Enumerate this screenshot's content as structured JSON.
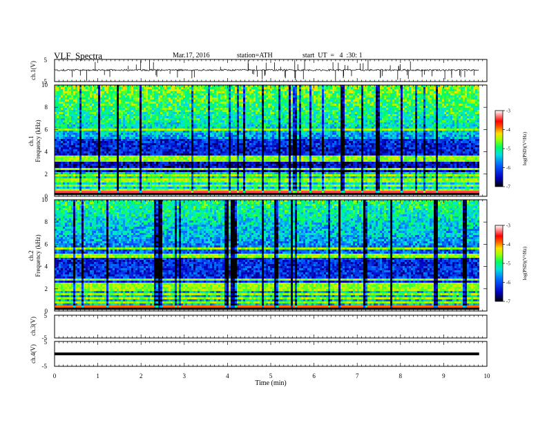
{
  "header": {
    "title": "VLF  Spectra",
    "date": "Mar.17, 2016",
    "station": "station=ATH",
    "start": "start  UT  =   4  :30: 1"
  },
  "chart_data": [
    {
      "type": "line",
      "panel": "ch1-waveform",
      "ylabel": "ch.1(V)",
      "yticks": [
        "5",
        "-5"
      ],
      "ylim": [
        -5,
        5
      ],
      "xlim": [
        0,
        10
      ],
      "data_extent_min": [
        0,
        9.82
      ],
      "approx_level": 0.2,
      "approx_amplitude": 0.4
    },
    {
      "type": "heatmap",
      "panel": "ch1-spectrogram",
      "ylabel": "ch.1\nFrequency  (kHz)",
      "ylabel_top": "ch.1",
      "ylabel_bottom": "Frequency  (kHz)",
      "yticks": [
        "10",
        "8",
        "6",
        "4",
        "2",
        "0"
      ],
      "ylim": [
        0,
        10
      ],
      "xlim": [
        0,
        10
      ],
      "colorbar": {
        "label": "log(PSD)(V²/Hz)",
        "ticks": [
          "-3",
          "-4",
          "-5",
          "-6",
          "-7"
        ],
        "range": [
          -7,
          -3
        ]
      }
    },
    {
      "type": "heatmap",
      "panel": "ch2-spectrogram",
      "ylabel_top": "ch.2",
      "ylabel_bottom": "Frequency  (kHz)",
      "yticks": [
        "10",
        "8",
        "6",
        "4",
        "2",
        "0"
      ],
      "ylim": [
        0,
        10
      ],
      "xlim": [
        0,
        10
      ],
      "colorbar": {
        "label": "log(PSD)(V²/Hz)",
        "ticks": [
          "-3",
          "-4",
          "-5",
          "-6",
          "-7"
        ],
        "range": [
          -7,
          -3
        ]
      }
    },
    {
      "type": "line",
      "panel": "ch3-waveform",
      "ylabel": "ch.3(V)",
      "yticks": [
        "5",
        "-5"
      ],
      "ylim": [
        -5,
        5
      ],
      "xlim": [
        0,
        10
      ]
    },
    {
      "type": "line",
      "panel": "ch4-waveform",
      "ylabel": "ch.4(V)",
      "yticks": [
        "5",
        "-5"
      ],
      "ylim": [
        -5,
        5
      ],
      "xlim": [
        0,
        10
      ],
      "approx_level": 0
    }
  ],
  "xaxis": {
    "label": "Time  (min)",
    "ticks": [
      "0",
      "1",
      "2",
      "3",
      "4",
      "5",
      "6",
      "7",
      "8",
      "9",
      "10"
    ],
    "range": [
      0,
      10
    ]
  },
  "colors": {
    "scale": [
      "#000080",
      "#0000ff",
      "#00c8ff",
      "#00ff80",
      "#c8ff00",
      "#ffc800",
      "#ff0000",
      "#ff9090",
      "#ffffff"
    ]
  }
}
